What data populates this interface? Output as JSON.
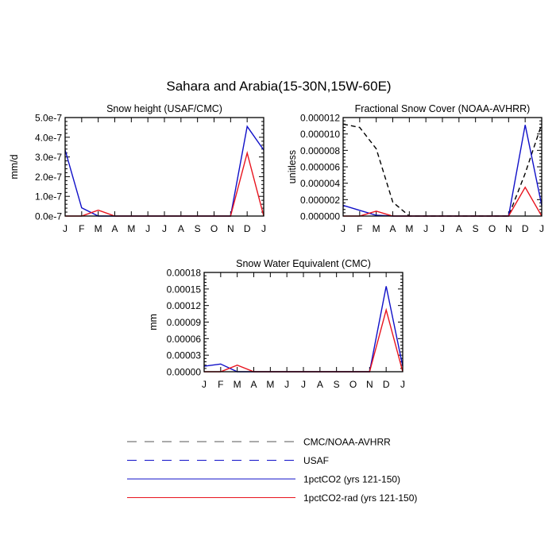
{
  "title": "Sahara and Arabia(15-30N,15W-60E)",
  "months": [
    "J",
    "F",
    "M",
    "A",
    "M",
    "J",
    "J",
    "A",
    "S",
    "O",
    "N",
    "D",
    "J"
  ],
  "colors": {
    "blue": "#1010c8",
    "red": "#e8141e",
    "black": "#000000"
  },
  "legend": [
    {
      "label": "CMC/NOAA-AVHRR",
      "color": "#000000",
      "dash": true
    },
    {
      "label": "USAF",
      "color": "#1010c8",
      "dash": true
    },
    {
      "label": "1pctCO2 (yrs 121-150)",
      "color": "#1010c8",
      "dash": false
    },
    {
      "label": "1pctCO2-rad (yrs 121-150)",
      "color": "#e8141e",
      "dash": false
    }
  ],
  "chart_data": [
    {
      "type": "line",
      "title": "Snow height (USAF/CMC)",
      "ylabel": "mm/d",
      "ylim": [
        0,
        5e-07
      ],
      "yticks": [
        0,
        1e-07,
        2e-07,
        3e-07,
        4e-07,
        5e-07
      ],
      "ytick_labels": [
        "0.0e-7",
        "1.0e-7",
        "2.0e-7",
        "3.0e-7",
        "4.0e-7",
        "5.0e-7"
      ],
      "categories": [
        "J",
        "F",
        "M",
        "A",
        "M",
        "J",
        "J",
        "A",
        "S",
        "O",
        "N",
        "D",
        "J"
      ],
      "series": [
        {
          "name": "1pctCO2 (yrs 121-150)",
          "color": "#1010c8",
          "dash": false,
          "values": [
            3.35e-07,
            4.2e-08,
            0,
            0,
            0,
            0,
            0,
            0,
            0,
            0,
            0,
            4.55e-07,
            3.35e-07
          ]
        },
        {
          "name": "1pctCO2-rad (yrs 121-150)",
          "color": "#e8141e",
          "dash": false,
          "values": [
            0,
            0,
            3e-08,
            0,
            0,
            0,
            0,
            0,
            0,
            0,
            0,
            3.2e-07,
            0
          ]
        }
      ]
    },
    {
      "type": "line",
      "title": "Fractional Snow Cover (NOAA-AVHRR)",
      "ylabel": "unitless",
      "ylim": [
        0,
        1.2e-05
      ],
      "yticks": [
        0,
        2e-06,
        4e-06,
        6e-06,
        8e-06,
        1e-05,
        1.2e-05
      ],
      "ytick_labels": [
        "0.000000",
        "0.000002",
        "0.000004",
        "0.000006",
        "0.000008",
        "0.000010",
        "0.000012"
      ],
      "categories": [
        "J",
        "F",
        "M",
        "A",
        "M",
        "J",
        "J",
        "A",
        "S",
        "O",
        "N",
        "D",
        "J"
      ],
      "series": [
        {
          "name": "CMC/NOAA-AVHRR",
          "color": "#000000",
          "dash": true,
          "values": [
            1.12e-05,
            1.08e-05,
            8.2e-06,
            1.7e-06,
            0,
            0,
            0,
            0,
            0,
            0,
            0,
            5.2e-06,
            1.12e-05
          ]
        },
        {
          "name": "1pctCO2 (yrs 121-150)",
          "color": "#1010c8",
          "dash": false,
          "values": [
            1.3e-06,
            7e-07,
            1e-07,
            0,
            0,
            0,
            0,
            0,
            0,
            0,
            0,
            1.11e-05,
            1.3e-06
          ]
        },
        {
          "name": "1pctCO2-rad (yrs 121-150)",
          "color": "#e8141e",
          "dash": false,
          "values": [
            0,
            0,
            6e-07,
            0,
            0,
            0,
            0,
            0,
            0,
            0,
            0,
            3.5e-06,
            0
          ]
        }
      ]
    },
    {
      "type": "line",
      "title": "Snow Water Equivalent (CMC)",
      "ylabel": "mm",
      "ylim": [
        0,
        0.00018
      ],
      "yticks": [
        0,
        3e-05,
        6e-05,
        9e-05,
        0.00012,
        0.00015,
        0.00018
      ],
      "ytick_labels": [
        "0.00000",
        "0.00003",
        "0.00006",
        "0.00009",
        "0.00012",
        "0.00015",
        "0.00018"
      ],
      "categories": [
        "J",
        "F",
        "M",
        "A",
        "M",
        "J",
        "J",
        "A",
        "S",
        "O",
        "N",
        "D",
        "J"
      ],
      "series": [
        {
          "name": "1pctCO2 (yrs 121-150)",
          "color": "#1010c8",
          "dash": false,
          "values": [
            1e-05,
            1.4e-05,
            0,
            0,
            0,
            0,
            0,
            0,
            0,
            0,
            0,
            0.000155,
            1e-05
          ]
        },
        {
          "name": "1pctCO2-rad (yrs 121-150)",
          "color": "#e8141e",
          "dash": false,
          "values": [
            0,
            0,
            1.2e-05,
            0,
            0,
            0,
            0,
            0,
            0,
            0,
            0,
            0.000112,
            0
          ]
        }
      ]
    }
  ]
}
